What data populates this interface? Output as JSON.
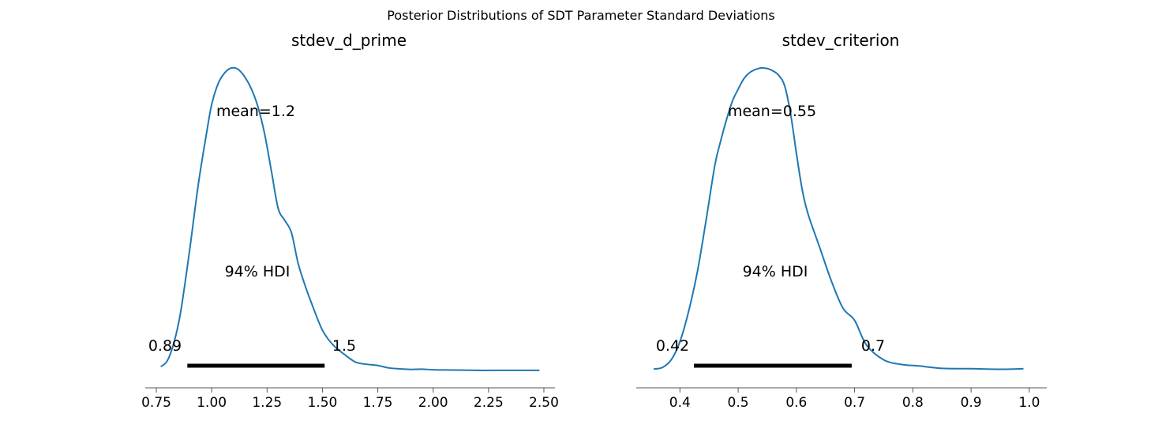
{
  "figure": {
    "suptitle": "Posterior Distributions of SDT Parameter Standard Deviations"
  },
  "colors": {
    "density_line": "#1f77b4",
    "hdi_bar": "#000000",
    "axis": "#555555"
  },
  "chart_data": [
    {
      "type": "line",
      "title": "stdev_d_prime",
      "xlabel": "",
      "ylabel": "",
      "xlim": [
        0.7,
        2.55
      ],
      "ylim": [
        0,
        1
      ],
      "xticks": [
        0.75,
        1.0,
        1.25,
        1.5,
        1.75,
        2.0,
        2.25,
        2.5
      ],
      "xtick_labels": [
        "0.75",
        "1.00",
        "1.25",
        "1.50",
        "1.75",
        "2.00",
        "2.25",
        "2.50"
      ],
      "y_axis_shown": false,
      "grid": false,
      "series": [
        {
          "x": [
            0.77,
            0.8,
            0.83,
            0.86,
            0.9,
            0.94,
            0.98,
            1.0,
            1.03,
            1.06,
            1.09,
            1.12,
            1.15,
            1.18,
            1.21,
            1.24,
            1.27,
            1.3,
            1.33,
            1.36,
            1.39,
            1.42,
            1.45,
            1.5,
            1.55,
            1.6,
            1.65,
            1.7,
            1.75,
            1.8,
            1.85,
            1.9,
            1.95,
            2.0,
            2.1,
            2.2,
            2.3,
            2.4,
            2.48
          ],
          "y": [
            0.02,
            0.04,
            0.1,
            0.2,
            0.4,
            0.62,
            0.8,
            0.88,
            0.95,
            0.985,
            1.0,
            0.995,
            0.97,
            0.93,
            0.87,
            0.78,
            0.66,
            0.54,
            0.5,
            0.46,
            0.36,
            0.29,
            0.23,
            0.14,
            0.09,
            0.06,
            0.035,
            0.028,
            0.024,
            0.016,
            0.013,
            0.011,
            0.012,
            0.01,
            0.009,
            0.008,
            0.008,
            0.008,
            0.008
          ]
        }
      ],
      "annotations": {
        "mean_label": "mean=1.2",
        "hdi_label": "94% HDI",
        "hdi_low_label": "0.89",
        "hdi_high_label": "1.5",
        "hdi": [
          0.89,
          1.51
        ]
      }
    },
    {
      "type": "line",
      "title": "stdev_criterion",
      "xlabel": "",
      "ylabel": "",
      "xlim": [
        0.325,
        1.03
      ],
      "ylim": [
        0,
        1
      ],
      "xticks": [
        0.4,
        0.5,
        0.6,
        0.7,
        0.8,
        0.9,
        1.0
      ],
      "xtick_labels": [
        "0.4",
        "0.5",
        "0.6",
        "0.7",
        "0.8",
        "0.9",
        "1.0"
      ],
      "y_axis_shown": false,
      "grid": false,
      "series": [
        {
          "x": [
            0.355,
            0.37,
            0.385,
            0.4,
            0.415,
            0.43,
            0.445,
            0.46,
            0.47,
            0.48,
            0.49,
            0.5,
            0.51,
            0.52,
            0.53,
            0.54,
            0.55,
            0.56,
            0.57,
            0.58,
            0.59,
            0.6,
            0.61,
            0.62,
            0.64,
            0.66,
            0.68,
            0.7,
            0.72,
            0.75,
            0.78,
            0.81,
            0.85,
            0.9,
            0.95,
            0.99
          ],
          "y": [
            0.01,
            0.015,
            0.04,
            0.1,
            0.2,
            0.33,
            0.5,
            0.68,
            0.76,
            0.83,
            0.89,
            0.93,
            0.965,
            0.985,
            0.995,
            1.0,
            0.998,
            0.99,
            0.975,
            0.94,
            0.85,
            0.72,
            0.6,
            0.52,
            0.41,
            0.3,
            0.21,
            0.17,
            0.09,
            0.04,
            0.025,
            0.02,
            0.012,
            0.011,
            0.009,
            0.011
          ]
        }
      ],
      "annotations": {
        "mean_label": "mean=0.55",
        "hdi_label": "94% HDI",
        "hdi_low_label": "0.42",
        "hdi_high_label": "0.7",
        "hdi": [
          0.424,
          0.695
        ]
      }
    }
  ]
}
